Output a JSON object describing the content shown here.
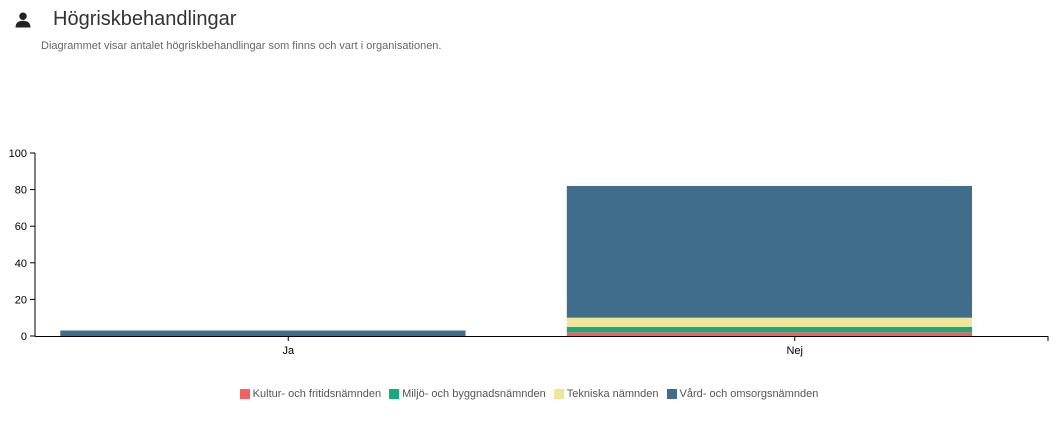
{
  "header": {
    "title": "Högriskbehandlingar",
    "subtitle": "Diagrammet visar antalet högriskbehandlingar som finns och vart i organisationen.",
    "icon": "person-icon"
  },
  "chart_data": {
    "type": "bar",
    "stacked": true,
    "categories": [
      "Ja",
      "Nej"
    ],
    "series": [
      {
        "name": "Kultur- och fritidsnämnden",
        "color": "#f06262",
        "values": [
          0,
          2
        ]
      },
      {
        "name": "Miljö- och byggnadsnämnden",
        "color": "#1aaa7a",
        "values": [
          0,
          3
        ]
      },
      {
        "name": "Tekniska nämnden",
        "color": "#f0e69a",
        "values": [
          0,
          5
        ]
      },
      {
        "name": "Vård- och omsorgsnämnden",
        "color": "#3f6d8b",
        "values": [
          3,
          72
        ]
      }
    ],
    "ylim": [
      0,
      100
    ],
    "yticks": [
      "0",
      "20",
      "40",
      "60",
      "80",
      "100"
    ],
    "legend_position": "bottom",
    "grid": false
  }
}
